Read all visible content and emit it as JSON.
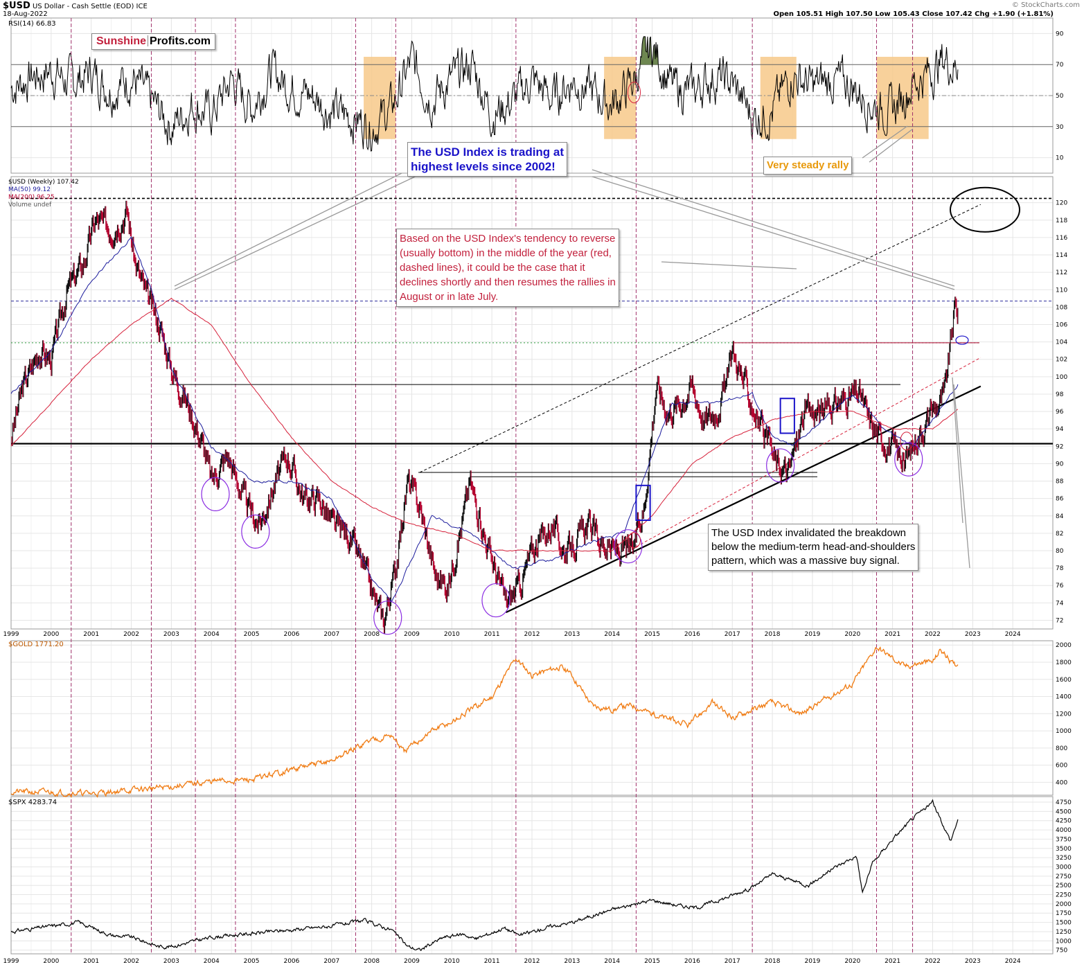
{
  "header": {
    "symbol": "$USD",
    "description": "US Dollar - Cash Settle (EOD) ICE",
    "date": "18-Aug-2022",
    "ohlc": "Open 105.51  High 107.50  Low 105.43  Close 107.42  Chg +1.90 (+1.81%)",
    "watermark": "© StockCharts.com"
  },
  "logo": {
    "part1": "Sunshine",
    "part2": "Profits.com"
  },
  "legends": {
    "rsi": "RSI(14) 66.83",
    "usd": "$USD (Weekly) 107.42",
    "ma50": "MA(50) 99.12",
    "ma200": "MA(200) 96.25",
    "volume": "Volume undef",
    "gold": "$GOLD 1771.20",
    "spx": "$SPX 4283.74"
  },
  "annotations": {
    "blue": [
      "The USD Index is trading at",
      "highest levels since 2002!"
    ],
    "red": [
      "Based on the USD Index's tendency to reverse",
      "(usually bottom) in the middle of the year (red,",
      "dashed lines), it could be the case that it",
      "declines shortly and then resumes the rallies in",
      "August or in late July."
    ],
    "black": [
      "The USD Index invalidated the breakdown",
      "below the medium-term head-and-shoulders",
      "pattern, which was a massive buy signal."
    ],
    "orange": "Very steady rally"
  },
  "colors": {
    "rsi_line": "#000000",
    "usd_candles": "#b3002d",
    "ma50": "#1b1b9c",
    "ma200": "#d6203a",
    "gold": "#f07a10",
    "spx": "#000000",
    "highlight": "#f7c98a",
    "overbought_fill": "#5e7a3e",
    "oversold_fill": "#7a4a36",
    "mid_year_lines": "#a0306a"
  },
  "chart_data": [
    {
      "type": "line",
      "panel": "RSI",
      "ylim": [
        0,
        100
      ],
      "yticks": [
        10,
        30,
        50,
        70,
        90
      ],
      "levels": [
        30,
        50,
        70
      ],
      "series": [
        {
          "name": "RSI(14)",
          "x": [
            1999.0,
            1999.5,
            2000.0,
            2000.5,
            2001.0,
            2001.5,
            2002.0,
            2002.5,
            2003.0,
            2003.5,
            2004.0,
            2004.5,
            2005.0,
            2005.5,
            2006.0,
            2006.5,
            2007.0,
            2007.5,
            2008.0,
            2008.5,
            2009.0,
            2009.5,
            2010.0,
            2010.5,
            2011.0,
            2011.5,
            2012.0,
            2012.5,
            2013.0,
            2013.5,
            2014.0,
            2014.5,
            2015.0,
            2015.5,
            2016.0,
            2016.5,
            2017.0,
            2017.5,
            2018.0,
            2018.5,
            2019.0,
            2019.5,
            2020.0,
            2020.5,
            2021.0,
            2021.5,
            2022.0,
            2022.3,
            2022.63
          ],
          "values": [
            55,
            62,
            66,
            58,
            65,
            54,
            62,
            46,
            30,
            44,
            38,
            60,
            42,
            66,
            55,
            50,
            40,
            36,
            30,
            42,
            72,
            48,
            60,
            70,
            38,
            46,
            60,
            48,
            60,
            52,
            44,
            58,
            82,
            55,
            52,
            62,
            58,
            36,
            40,
            64,
            56,
            60,
            56,
            44,
            40,
            58,
            66,
            74,
            66.83
          ]
        }
      ],
      "highlight_boxes": [
        [
          2007.8,
          2008.6
        ],
        [
          2013.8,
          2014.6
        ],
        [
          2017.7,
          2018.6
        ],
        [
          2020.6,
          2021.9
        ]
      ]
    },
    {
      "type": "line",
      "panel": "$USD (Weekly)",
      "ylim": [
        71,
        123
      ],
      "yticks": [
        72,
        74,
        76,
        78,
        80,
        82,
        84,
        86,
        88,
        90,
        92,
        94,
        96,
        98,
        100,
        102,
        104,
        106,
        108,
        110,
        112,
        114,
        116,
        118,
        120
      ],
      "series": [
        {
          "name": "$USD (Weekly)",
          "x": [
            1999.0,
            1999.3,
            1999.7,
            2000.0,
            2000.4,
            2000.8,
            2001.1,
            2001.5,
            2001.9,
            2002.1,
            2002.4,
            2002.7,
            2003.0,
            2003.4,
            2003.8,
            2004.0,
            2004.4,
            2004.9,
            2005.2,
            2005.6,
            2005.9,
            2006.3,
            2006.7,
            2007.0,
            2007.4,
            2007.8,
            2008.1,
            2008.3,
            2008.6,
            2008.9,
            2009.2,
            2009.6,
            2009.9,
            2010.2,
            2010.45,
            2010.8,
            2011.0,
            2011.35,
            2011.7,
            2012.0,
            2012.5,
            2012.8,
            2013.1,
            2013.4,
            2013.7,
            2014.0,
            2014.5,
            2014.8,
            2015.1,
            2015.4,
            2015.7,
            2016.0,
            2016.3,
            2016.6,
            2016.9,
            2017.0,
            2017.4,
            2017.8,
            2018.1,
            2018.4,
            2018.8,
            2019.2,
            2019.6,
            2020.0,
            2020.2,
            2020.4,
            2020.7,
            2021.0,
            2021.3,
            2021.6,
            2022.0,
            2022.3,
            2022.55,
            2022.63
          ],
          "values": [
            93,
            99,
            103,
            102,
            110,
            113,
            118,
            117,
            119,
            113,
            109,
            106,
            101,
            97,
            92,
            88,
            91,
            85,
            83,
            88,
            91,
            86,
            86,
            83,
            82,
            78,
            74,
            72,
            78,
            88,
            85,
            77,
            76,
            82,
            88,
            82,
            79,
            74,
            76,
            80,
            83,
            80,
            81,
            83,
            81,
            80,
            80,
            85,
            99,
            96,
            97,
            99,
            95,
            96,
            100,
            103,
            98,
            93,
            90,
            89,
            96,
            96,
            97,
            98,
            98,
            95,
            93,
            92,
            90,
            93,
            96,
            98,
            108,
            107.42
          ]
        },
        {
          "name": "MA(50)",
          "x": [
            1999.0,
            2000.0,
            2001.0,
            2002.0,
            2002.5,
            2003.0,
            2004.0,
            2005.0,
            2006.0,
            2007.0,
            2008.0,
            2008.5,
            2009.5,
            2010.5,
            2011.5,
            2012.5,
            2013.5,
            2014.3,
            2015.0,
            2015.5,
            2016.5,
            2017.5,
            2018.0,
            2018.5,
            2019.5,
            2020.0,
            2020.8,
            2021.5,
            2022.0,
            2022.63
          ],
          "values": [
            98,
            103,
            111,
            116,
            110,
            101,
            92,
            88,
            88,
            86,
            77,
            74,
            84,
            82,
            78,
            79,
            81,
            82,
            91,
            97,
            97,
            98,
            93,
            92,
            96,
            98,
            94,
            92,
            95,
            99.12
          ]
        },
        {
          "name": "MA(200)",
          "x": [
            1999.0,
            2000.0,
            2001.0,
            2002.0,
            2003.0,
            2004.0,
            2005.0,
            2006.0,
            2007.0,
            2008.0,
            2009.0,
            2010.0,
            2011.0,
            2012.0,
            2013.0,
            2014.0,
            2015.0,
            2016.0,
            2017.0,
            2018.0,
            2019.0,
            2020.0,
            2021.0,
            2022.0,
            2022.63
          ],
          "values": [
            92,
            97,
            102,
            106,
            109,
            106,
            99,
            93,
            88,
            85,
            83,
            82,
            80,
            80,
            80,
            80,
            84,
            90,
            93,
            95,
            96,
            96,
            94,
            94,
            96.25
          ]
        }
      ]
    },
    {
      "type": "line",
      "panel": "$GOLD",
      "ylim": [
        250,
        2050
      ],
      "yticks": [
        400,
        600,
        800,
        1000,
        1200,
        1400,
        1600,
        1800,
        2000
      ],
      "series": [
        {
          "name": "$GOLD",
          "x": [
            1999.0,
            2000.0,
            2001.0,
            2002.0,
            2003.0,
            2004.0,
            2005.0,
            2006.0,
            2007.0,
            2008.0,
            2008.5,
            2008.8,
            2009.5,
            2010.0,
            2010.5,
            2011.0,
            2011.6,
            2012.0,
            2012.7,
            2013.0,
            2013.5,
            2014.0,
            2014.5,
            2015.0,
            2015.9,
            2016.5,
            2017.0,
            2017.5,
            2018.0,
            2018.7,
            2019.0,
            2019.5,
            2020.0,
            2020.6,
            2021.0,
            2021.3,
            2021.8,
            2022.0,
            2022.2,
            2022.5,
            2022.63
          ],
          "values": [
            290,
            285,
            270,
            310,
            350,
            410,
            430,
            550,
            650,
            900,
            950,
            750,
            1000,
            1100,
            1250,
            1400,
            1850,
            1650,
            1750,
            1650,
            1300,
            1250,
            1300,
            1200,
            1060,
            1330,
            1150,
            1250,
            1330,
            1200,
            1280,
            1420,
            1550,
            1980,
            1850,
            1750,
            1800,
            1800,
            1950,
            1780,
            1771.2
          ]
        }
      ]
    },
    {
      "type": "line",
      "panel": "$SPX",
      "ylim": [
        650,
        4900
      ],
      "yticks": [
        750,
        1000,
        1250,
        1500,
        1750,
        2000,
        2250,
        2500,
        2750,
        3000,
        3250,
        3500,
        3750,
        4000,
        4250,
        4500,
        4750
      ],
      "series": [
        {
          "name": "$SPX",
          "x": [
            1999.0,
            2000.0,
            2000.7,
            2001.5,
            2002.0,
            2002.7,
            2003.0,
            2004.0,
            2005.0,
            2006.0,
            2007.0,
            2007.8,
            2008.5,
            2008.9,
            2009.2,
            2009.8,
            2010.3,
            2010.6,
            2011.3,
            2011.7,
            2012.5,
            2013.0,
            2014.0,
            2015.0,
            2015.7,
            2016.1,
            2016.8,
            2017.5,
            2018.0,
            2018.9,
            2019.5,
            2020.1,
            2020.25,
            2020.5,
            2021.0,
            2021.5,
            2022.0,
            2022.45,
            2022.63
          ],
          "values": [
            1250,
            1400,
            1500,
            1150,
            1100,
            850,
            850,
            1100,
            1200,
            1300,
            1400,
            1550,
            1300,
            850,
            750,
            1100,
            1180,
            1050,
            1350,
            1150,
            1400,
            1500,
            1850,
            2100,
            1950,
            1900,
            2150,
            2450,
            2800,
            2500,
            2950,
            3300,
            2300,
            3100,
            3750,
            4300,
            4750,
            3700,
            4283.74
          ]
        }
      ]
    }
  ],
  "x_axis": {
    "year_labels": [
      "1999",
      "2000",
      "2001",
      "2002",
      "2003",
      "2004",
      "2005",
      "2006",
      "2007",
      "2008",
      "2009",
      "2010",
      "2011",
      "2012",
      "2013",
      "2014",
      "2015",
      "2016",
      "2017",
      "2018",
      "2019",
      "2020",
      "2021",
      "2022",
      "2023",
      "2024"
    ],
    "range": [
      1999,
      2025
    ]
  },
  "mid_year_lines": [
    2000.5,
    2002.5,
    2003.6,
    2004.6,
    2007.6,
    2008.6,
    2011.6,
    2014.6,
    2017.5,
    2020.6,
    2021.5
  ],
  "purple_circles": [
    {
      "x": 2004.1,
      "y": 86.5
    },
    {
      "x": 2005.1,
      "y": 82.2
    },
    {
      "x": 2008.4,
      "y": 72.3
    },
    {
      "x": 2011.1,
      "y": 74.3
    },
    {
      "x": 2014.4,
      "y": 80.5
    },
    {
      "x": 2018.2,
      "y": 89.8
    },
    {
      "x": 2021.4,
      "y": 90.5
    }
  ],
  "blue_boxes": [
    [
      2014.6,
      2014.95,
      83.5,
      87.5
    ],
    [
      2018.2,
      2018.55,
      93.5,
      97.5
    ]
  ]
}
